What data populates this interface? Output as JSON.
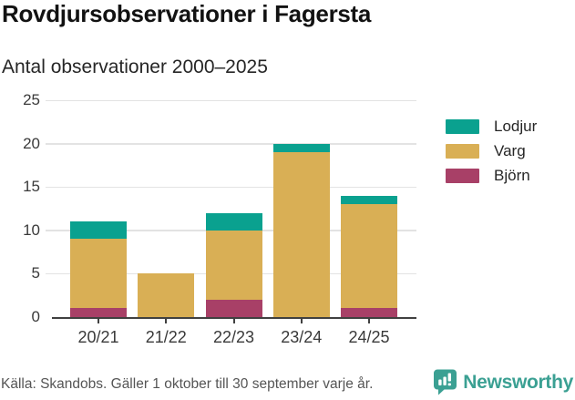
{
  "header": {
    "title": "Rovdjursobservationer i Fagersta",
    "subtitle": "Antal observationer 2000–2025"
  },
  "chart_data": {
    "type": "bar",
    "stacked": true,
    "title": "Rovdjursobservationer i Fagersta",
    "subtitle": "Antal observationer 2000–2025",
    "categories": [
      "20/21",
      "21/22",
      "22/23",
      "23/24",
      "24/25"
    ],
    "series": [
      {
        "name": "Björn",
        "color": "#a84067",
        "values": [
          1,
          0,
          2,
          0,
          1
        ]
      },
      {
        "name": "Varg",
        "color": "#d9af55",
        "values": [
          8,
          5,
          8,
          19,
          12
        ]
      },
      {
        "name": "Lodjur",
        "color": "#0aa18f",
        "values": [
          2,
          0,
          2,
          1,
          1
        ]
      }
    ],
    "totals": [
      11,
      5,
      12,
      20,
      14
    ],
    "legend_order": [
      "Lodjur",
      "Varg",
      "Björn"
    ],
    "legend_position": "right",
    "xlabel": "",
    "ylabel": "",
    "ylim": [
      0,
      25
    ],
    "yticks": [
      0,
      5,
      10,
      15,
      20,
      25
    ],
    "grid": true
  },
  "footer": {
    "source": "Källa: Skandobs. Gäller 1 oktober till 30 september varje år.",
    "brand": "Newsworthy",
    "brand_color": "#3ba093"
  },
  "icons": {
    "brand_logo": "newsworthy-speech-bubble-bar-chart-icon"
  }
}
